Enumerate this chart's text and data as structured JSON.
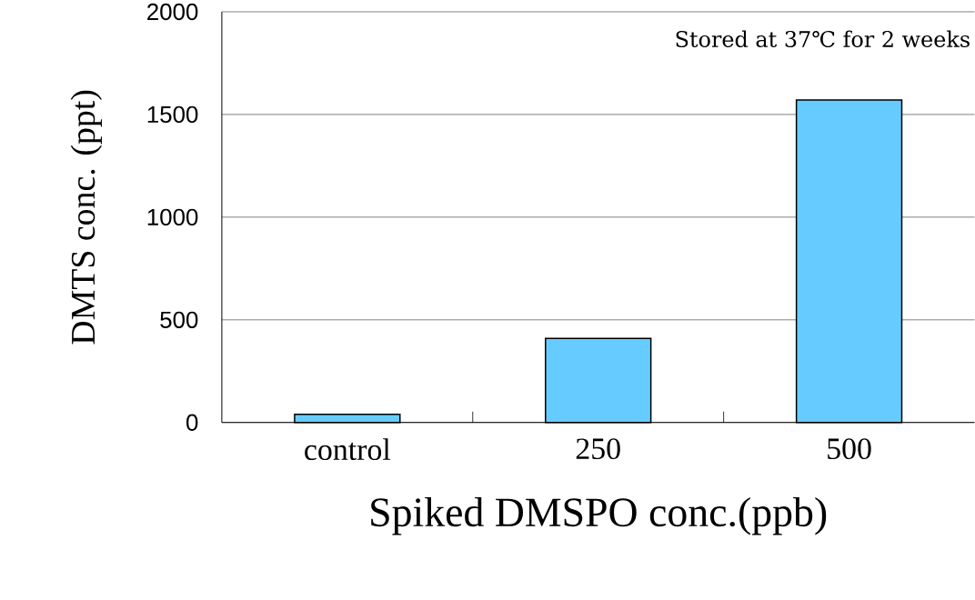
{
  "chart_data": {
    "type": "bar",
    "xlabel": "Spiked DMSPO conc.(ppb)",
    "ylabel": "DMTS conc. (ppt)",
    "categories": [
      "control",
      "250",
      "500"
    ],
    "values": [
      40,
      410,
      1570
    ],
    "color": "#66ccff",
    "ylim": [
      0,
      2000
    ],
    "yticks": [
      0,
      500,
      1000,
      1500,
      2000
    ],
    "grid": "y",
    "annotations": [
      "Stored at 37℃ for 2 weeks"
    ]
  }
}
